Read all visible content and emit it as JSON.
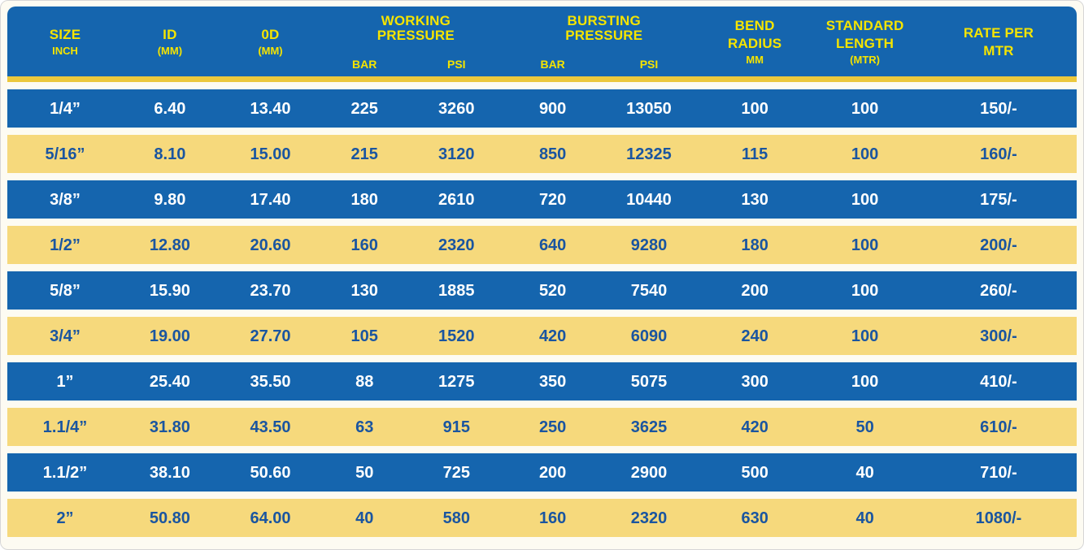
{
  "colors": {
    "header_blue": "#1565ae",
    "row_blue": "#1565ae",
    "row_yellow": "#f6d97c",
    "header_text_yellow": "#f5e400",
    "row_text_dark_blue": "#1a55a0",
    "row_text_white": "#ffffff",
    "separator_gold": "#ecc83c",
    "background_cream": "#fdfbf2"
  },
  "table": {
    "header": {
      "size": {
        "l1": "SIZE",
        "l2": "INCH"
      },
      "id": {
        "l1": "ID",
        "l2": "(MM)"
      },
      "od": {
        "l1": "0D",
        "l2": "(MM)"
      },
      "working": {
        "l1": "WORKING",
        "l2": "PRESSURE",
        "sub_bar": "BAR",
        "sub_psi": "PSI"
      },
      "bursting": {
        "l1": "BURSTING",
        "l2": "PRESSURE",
        "sub_bar": "BAR",
        "sub_psi": "PSI"
      },
      "bend": {
        "l1": "BEND",
        "l2": "RADIUS",
        "l3": "MM"
      },
      "length": {
        "l1": "STANDARD",
        "l2": "LENGTH",
        "l3": "(MTR)"
      },
      "rate": {
        "l1": "RATE PER",
        "l2": "MTR"
      }
    }
  },
  "chart_data": {
    "type": "table",
    "columns": [
      "SIZE INCH",
      "ID (MM)",
      "0D (MM)",
      "WORKING PRESSURE BAR",
      "WORKING PRESSURE PSI",
      "BURSTING PRESSURE BAR",
      "BURSTING PRESSURE PSI",
      "BEND RADIUS MM",
      "STANDARD LENGTH (MTR)",
      "RATE PER MTR"
    ],
    "rows": [
      [
        "1/4”",
        "6.40",
        "13.40",
        "225",
        "3260",
        "900",
        "13050",
        "100",
        "100",
        "150/-"
      ],
      [
        "5/16”",
        "8.10",
        "15.00",
        "215",
        "3120",
        "850",
        "12325",
        "115",
        "100",
        "160/-"
      ],
      [
        "3/8”",
        "9.80",
        "17.40",
        "180",
        "2610",
        "720",
        "10440",
        "130",
        "100",
        "175/-"
      ],
      [
        "1/2”",
        "12.80",
        "20.60",
        "160",
        "2320",
        "640",
        "9280",
        "180",
        "100",
        "200/-"
      ],
      [
        "5/8”",
        "15.90",
        "23.70",
        "130",
        "1885",
        "520",
        "7540",
        "200",
        "100",
        "260/-"
      ],
      [
        "3/4”",
        "19.00",
        "27.70",
        "105",
        "1520",
        "420",
        "6090",
        "240",
        "100",
        "300/-"
      ],
      [
        "1”",
        "25.40",
        "35.50",
        "88",
        "1275",
        "350",
        "5075",
        "300",
        "100",
        "410/-"
      ],
      [
        "1.1/4”",
        "31.80",
        "43.50",
        "63",
        "915",
        "250",
        "3625",
        "420",
        "50",
        "610/-"
      ],
      [
        "1.1/2”",
        "38.10",
        "50.60",
        "50",
        "725",
        "200",
        "2900",
        "500",
        "40",
        "710/-"
      ],
      [
        "2”",
        "50.80",
        "64.00",
        "40",
        "580",
        "160",
        "2320",
        "630",
        "40",
        "1080/-"
      ]
    ],
    "row_striping": "alternating blue/yellow starting with blue",
    "grid": false,
    "legend_position": "none"
  }
}
